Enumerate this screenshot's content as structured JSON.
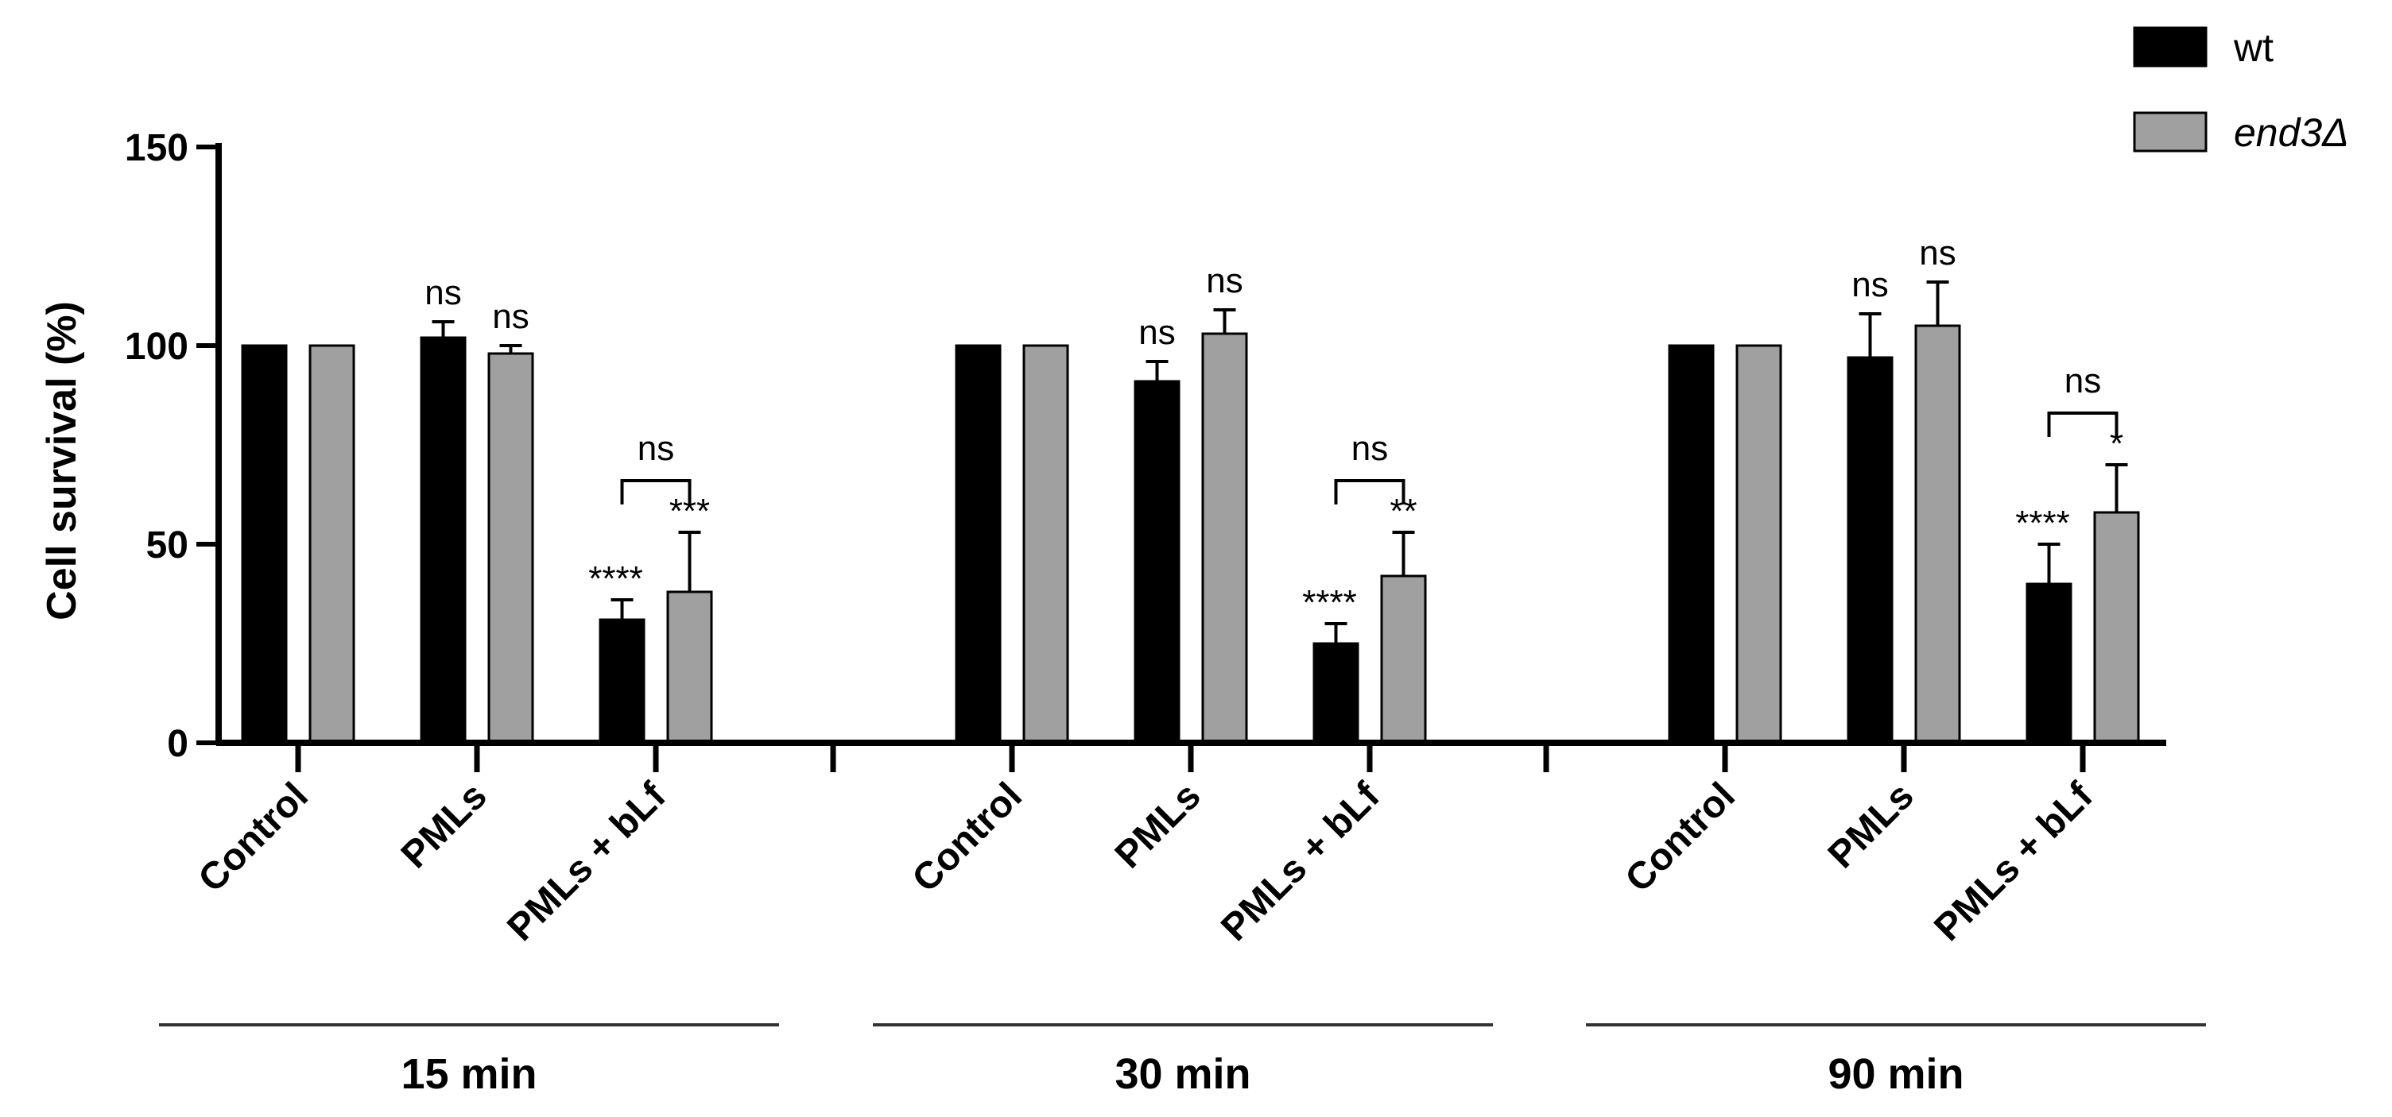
{
  "chart_data": {
    "type": "bar",
    "ylabel": "Cell survival (%)",
    "xlabel": "",
    "ylim": [
      0,
      150
    ],
    "yticks": [
      0,
      50,
      100,
      150
    ],
    "legend_position": "top-right",
    "series": [
      {
        "name": "wt",
        "italic": false,
        "color": "#000000"
      },
      {
        "name": "end3Δ",
        "italic": true,
        "color": "#a0a0a0"
      }
    ],
    "groups": [
      {
        "label": "15 min",
        "categories": [
          {
            "label": "Control",
            "values": [
              100,
              100
            ],
            "errors": [
              0,
              0
            ],
            "sig": [
              "",
              ""
            ],
            "bracket": ""
          },
          {
            "label": "PMLs",
            "values": [
              102,
              98
            ],
            "errors": [
              4,
              2
            ],
            "sig": [
              "ns",
              "ns"
            ],
            "bracket": ""
          },
          {
            "label": "PMLs + bLf",
            "values": [
              31,
              38
            ],
            "errors": [
              5,
              15
            ],
            "sig": [
              "****",
              "***"
            ],
            "bracket": "ns"
          }
        ]
      },
      {
        "label": "30 min",
        "categories": [
          {
            "label": "Control",
            "values": [
              100,
              100
            ],
            "errors": [
              0,
              0
            ],
            "sig": [
              "",
              ""
            ],
            "bracket": ""
          },
          {
            "label": "PMLs",
            "values": [
              91,
              103
            ],
            "errors": [
              5,
              6
            ],
            "sig": [
              "ns",
              "ns"
            ],
            "bracket": ""
          },
          {
            "label": "PMLs + bLf",
            "values": [
              25,
              42
            ],
            "errors": [
              5,
              11
            ],
            "sig": [
              "****",
              "**"
            ],
            "bracket": "ns"
          }
        ]
      },
      {
        "label": "90 min",
        "categories": [
          {
            "label": "Control",
            "values": [
              100,
              100
            ],
            "errors": [
              0,
              0
            ],
            "sig": [
              "",
              ""
            ],
            "bracket": ""
          },
          {
            "label": "PMLs",
            "values": [
              97,
              105
            ],
            "errors": [
              11,
              11
            ],
            "sig": [
              "ns",
              "ns"
            ],
            "bracket": ""
          },
          {
            "label": "PMLs + bLf",
            "values": [
              40,
              58
            ],
            "errors": [
              10,
              12
            ],
            "sig": [
              "****",
              "*"
            ],
            "bracket": "ns"
          }
        ]
      }
    ]
  }
}
